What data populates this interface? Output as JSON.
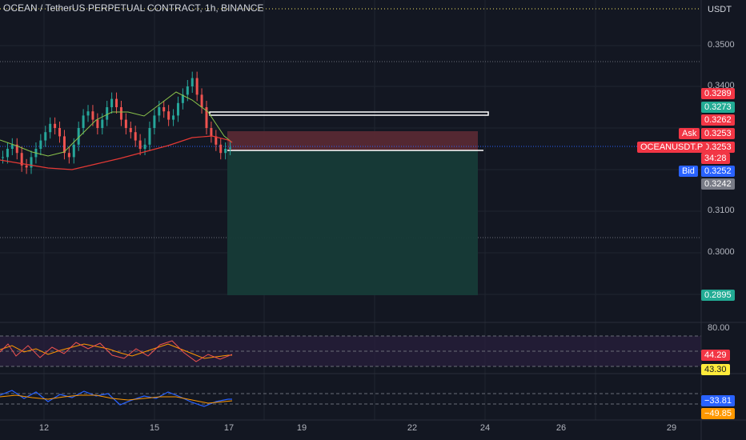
{
  "title": "OCEAN / TetherUS PERPETUAL CONTRACT, 1h, BINANCE",
  "currency": "USDT",
  "price_axis": [
    "0.3500",
    "0.3400",
    "0.3100",
    "0.3000"
  ],
  "time_axis": [
    "12",
    "15",
    "17",
    "19",
    "22",
    "24",
    "26",
    "29"
  ],
  "tags": {
    "t1": "0.3289",
    "t2": "0.3273",
    "t3": "0.3262",
    "ask_price": "0.3253",
    "last_price": "0.3253",
    "countdown": "34:28",
    "bid_price": "0.3252",
    "low": "0.3242",
    "target": "0.2895",
    "rsi_top": "80.00",
    "rsi_1": "44.29",
    "rsi_2": "43.30",
    "osc_1": "−33.81",
    "osc_2": "−49.85"
  },
  "labels": {
    "ask": "Ask",
    "bid": "Bid",
    "symbol": "OCEANUSDT.P"
  },
  "colors": {
    "bg": "#131722",
    "up": "#26a69a",
    "down": "#ef5350",
    "ma_fast": "#8bc34a",
    "ma_slow": "#e53935",
    "price_line": "#2962ff",
    "stop_zone": "#5c2a34",
    "profit_zone": "#163b38",
    "rsi_a": "#ff9800",
    "rsi_b": "#ef5350",
    "osc_a": "#2962ff",
    "osc_b": "#ff9800"
  },
  "chart_data": {
    "type": "candlestick",
    "series": [
      {
        "name": "price",
        "values": [
          0.323,
          0.325,
          0.326,
          0.324,
          0.321,
          0.3205,
          0.323,
          0.325,
          0.327,
          0.329,
          0.331,
          0.33,
          0.328,
          0.324,
          0.323,
          0.326,
          0.33,
          0.333,
          0.334,
          0.332,
          0.33,
          0.332,
          0.335,
          0.337,
          0.335,
          0.332,
          0.33,
          0.329,
          0.327,
          0.325,
          0.326,
          0.33,
          0.333,
          0.335,
          0.334,
          0.332,
          0.333,
          0.336,
          0.338,
          0.34,
          0.342,
          0.338,
          0.335,
          0.33,
          0.328,
          0.326,
          0.324,
          0.325,
          0.3253
        ]
      }
    ]
  }
}
